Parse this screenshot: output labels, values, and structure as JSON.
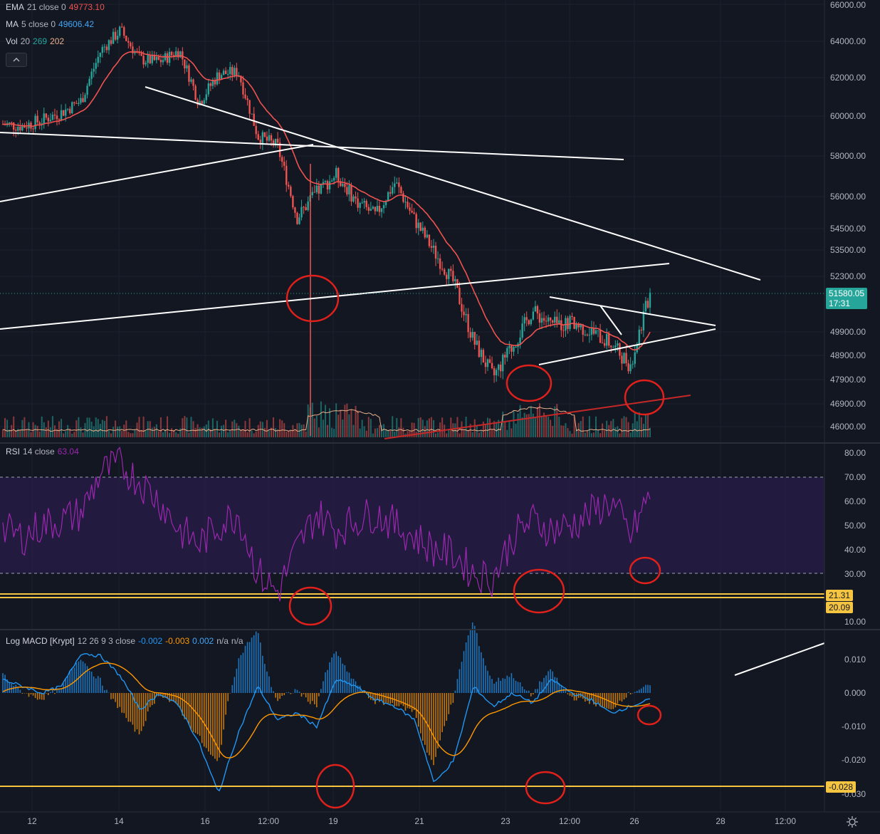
{
  "legend": {
    "ema": {
      "name": "EMA",
      "params": "21 close 0",
      "value": "49773.10"
    },
    "ma": {
      "name": "MA",
      "params": "5 close 0",
      "value": "49606.42"
    },
    "vol": {
      "name": "Vol",
      "params": "20",
      "v1": "269",
      "v2": "202"
    }
  },
  "rsi_legend": {
    "name": "RSI",
    "params": "14 close",
    "value": "63.04"
  },
  "macd_legend": {
    "name": "Log MACD [Krypt]",
    "params": "12 26 9 3 close",
    "v1": "-0.002",
    "v2": "-0.003",
    "v3": "0.002",
    "v4": "n/a",
    "v5": "n/a"
  },
  "price_axis": [
    "66000.00",
    "64000.00",
    "62000.00",
    "60000.00",
    "58000.00",
    "56000.00",
    "54500.00",
    "53500.00",
    "52300.00",
    "49900.00",
    "48900.00",
    "47900.00",
    "46900.00",
    "46000.00"
  ],
  "price_tag": {
    "price": "51580.05",
    "countdown": "17:31"
  },
  "rsi_axis": [
    "80.00",
    "70.00",
    "60.00",
    "50.00",
    "40.00",
    "30.00",
    "10.00"
  ],
  "rsi_tags": [
    "21.31",
    "20.09"
  ],
  "macd_axis": [
    "0.010",
    "0.000",
    "-0.010",
    "-0.020",
    "-0.030"
  ],
  "macd_tag": "-0.028",
  "time_axis": [
    "12",
    "14",
    "16",
    "12:00",
    "19",
    "21",
    "23",
    "12:00",
    "26",
    "28",
    "12:00"
  ],
  "colors": {
    "background": "#131722",
    "up": "#26a69a",
    "down": "#ef5350",
    "ema": "#ef5350",
    "rsi": "#9c27b0",
    "rsi_band": "#2a1d4a",
    "macd": "#2196f3",
    "signal": "#ff9800",
    "annotation": "#e0201b",
    "yellow": "#f5c542"
  },
  "icons": [
    "chevron-up-icon",
    "settings-icon"
  ],
  "chart_data": {
    "type": "candlestick",
    "timeframe_note": "",
    "price_path": [
      59600,
      59500,
      59800,
      60200,
      60800,
      63500,
      64600,
      63000,
      62900,
      63500,
      60700,
      62200,
      62300,
      59000,
      58500,
      55000,
      56200,
      57100,
      55800,
      55100,
      56700,
      54900,
      53400,
      52000,
      49500,
      48000,
      49300,
      50800,
      50200,
      50300,
      49900,
      49400,
      48500,
      51580
    ],
    "rsi_levels": {
      "upper": 70,
      "lower": 30,
      "marked": [
        21.31,
        20.09
      ]
    },
    "rsi_last": 63.04,
    "macd_marked": -0.028
  }
}
